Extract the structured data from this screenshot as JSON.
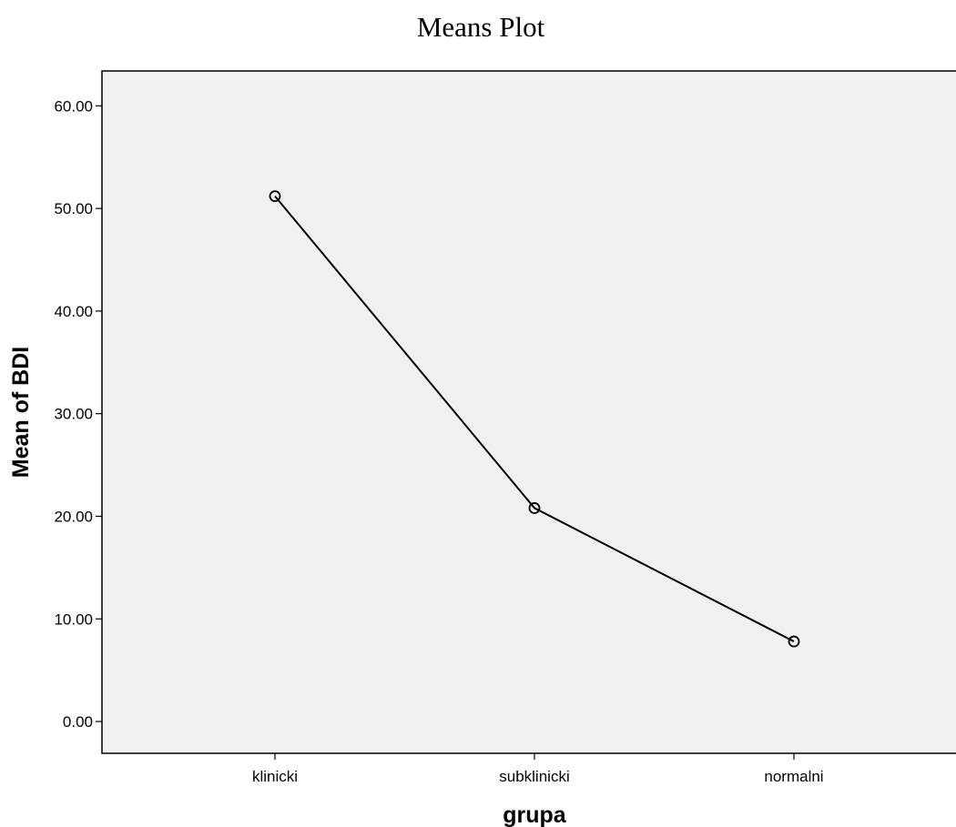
{
  "chart_data": {
    "type": "line",
    "title": "Means Plot",
    "xlabel": "grupa",
    "ylabel": "Mean of BDI",
    "categories": [
      "klinicki",
      "subklinicki",
      "normalni"
    ],
    "series": [
      {
        "values": [
          51.2,
          20.8,
          7.8
        ]
      }
    ],
    "ylim": [
      -3.1,
      63.4
    ],
    "yticks": [
      "0.00",
      "10.00",
      "20.00",
      "30.00",
      "40.00",
      "50.00",
      "60.00"
    ],
    "grid": false,
    "marker": "open-circle",
    "colors": {
      "line": "#000000",
      "plot_background": "#f0f0f0",
      "page_background": "#ffffff"
    }
  }
}
